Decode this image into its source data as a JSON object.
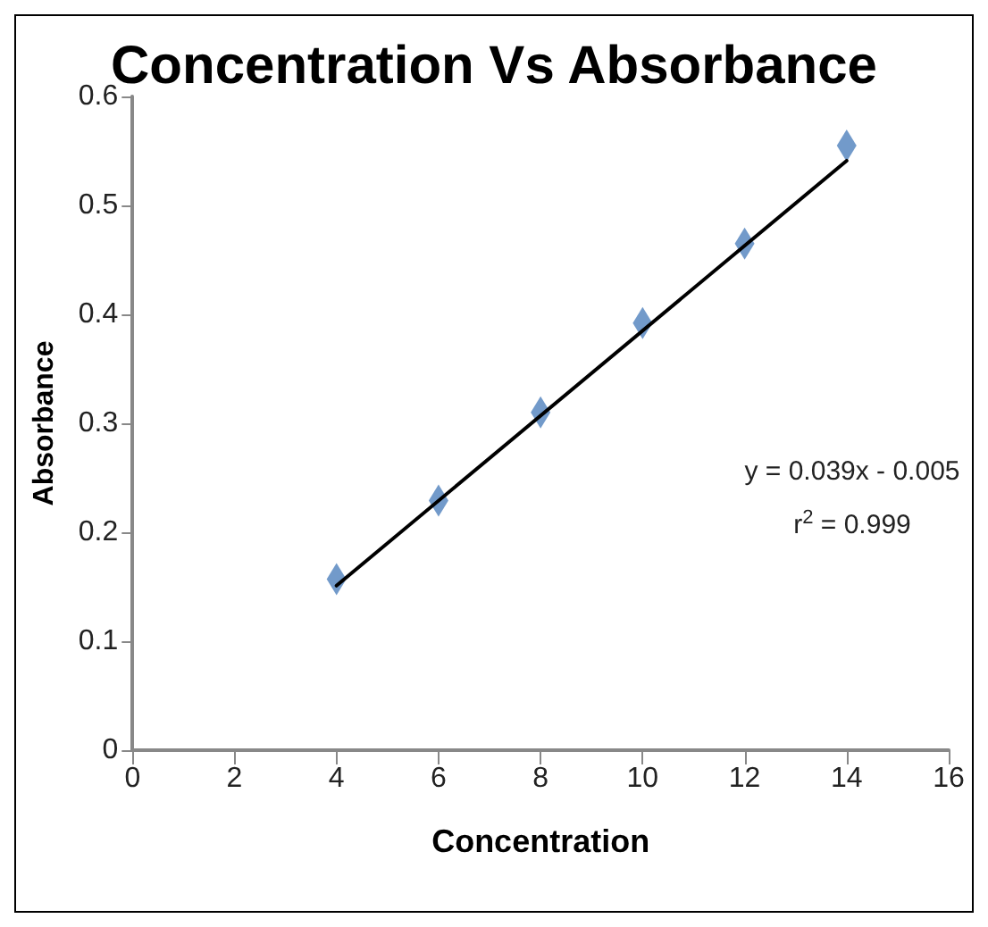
{
  "chart_data": {
    "type": "scatter",
    "title": "Concentration Vs Absorbance",
    "xlabel": "Concentration",
    "ylabel": "Absorbance",
    "x": [
      4,
      6,
      8,
      10,
      12,
      14
    ],
    "series": [
      {
        "color": "#4f81bd",
        "marker": "diamond",
        "values": [
          0.157,
          0.229,
          0.31,
          0.392,
          0.465,
          0.555
        ]
      },
      {
        "type": "line",
        "color": "#000000",
        "x": [
          4,
          14
        ],
        "values": [
          0.151,
          0.541
        ],
        "marker": "none"
      }
    ],
    "xlim": [
      0,
      16
    ],
    "xticks": [
      0,
      2,
      4,
      6,
      8,
      10,
      12,
      14,
      16
    ],
    "ylim": [
      0,
      0.6
    ],
    "yticks": [
      0,
      0.1,
      0.2,
      0.3,
      0.4,
      0.5,
      0.6
    ],
    "grid": false,
    "annotations": [
      "y = 0.039x - 0.005",
      "r$^{2}$ = 0.999"
    ]
  }
}
